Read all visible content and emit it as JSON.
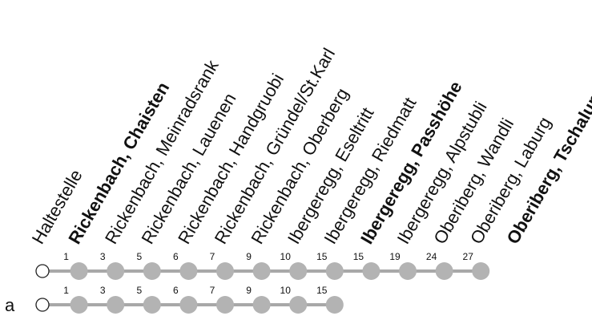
{
  "header_label": "Haltestelle",
  "stops": [
    {
      "name": "Rickenbach, Chaisten",
      "major": true
    },
    {
      "name": "Rickenbach, Meinradsrank",
      "major": false
    },
    {
      "name": "Rickenbach, Lauenen",
      "major": false
    },
    {
      "name": "Rickenbach, Handgruobi",
      "major": false
    },
    {
      "name": "Rickenbach, Gründel/St.Karl",
      "major": false
    },
    {
      "name": "Rickenbach, Oberberg",
      "major": false
    },
    {
      "name": "Ibergeregg, Eseltritt",
      "major": false
    },
    {
      "name": "Ibergeregg, Riedmatt",
      "major": false
    },
    {
      "name": "Ibergeregg, Passhöhe",
      "major": true
    },
    {
      "name": "Ibergeregg, Alpstubli",
      "major": false
    },
    {
      "name": "Oberiberg, Wandli",
      "major": false
    },
    {
      "name": "Oberiberg, Laburg",
      "major": false
    },
    {
      "name": "Oberiberg, Tschalun",
      "major": true
    }
  ],
  "variants": [
    {
      "label": "",
      "minutes": [
        "1",
        "3",
        "5",
        "6",
        "7",
        "9",
        "10",
        "15",
        "15",
        "19",
        "24",
        "27"
      ],
      "stop_count": 13
    },
    {
      "label": "a",
      "minutes": [
        "1",
        "3",
        "5",
        "6",
        "7",
        "9",
        "10",
        "15"
      ],
      "stop_count": 9
    }
  ],
  "colors": {
    "line": "#a8a8a8",
    "stop": "#b3b3b3",
    "origin_fill": "#ffffff",
    "origin_stroke": "#222222",
    "text": "#111111"
  }
}
